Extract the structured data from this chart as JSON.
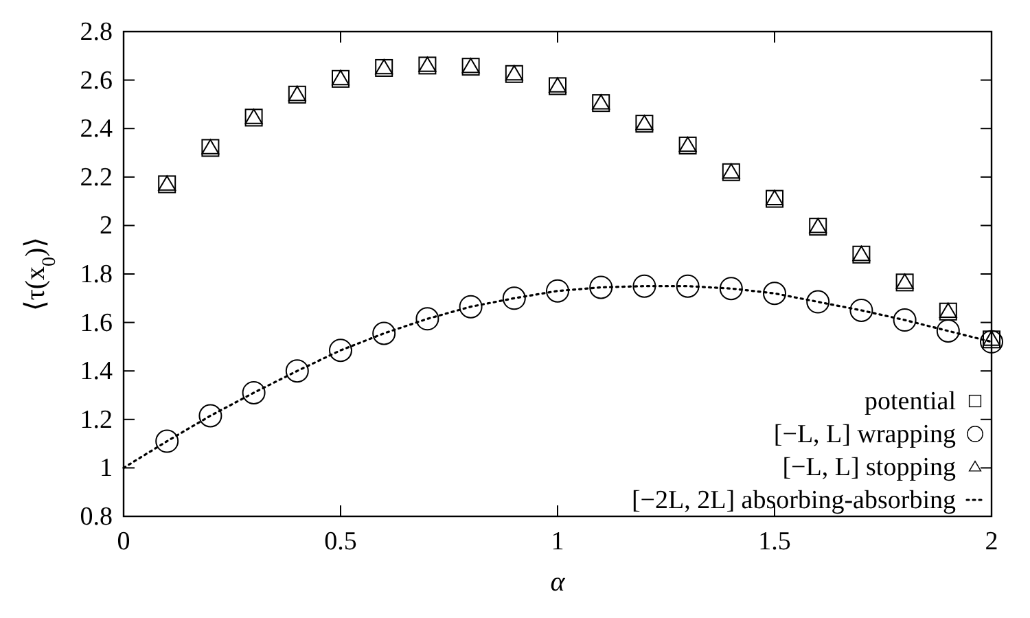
{
  "chart_data": {
    "type": "scatter",
    "xlabel": "α",
    "ylabel": "⟨τ(x$_{0}$)⟩",
    "xlim": [
      0,
      2
    ],
    "ylim": [
      0.8,
      2.8
    ],
    "xticks": [
      0,
      0.5,
      1,
      1.5,
      2
    ],
    "yticks": [
      0.8,
      1,
      1.2,
      1.4,
      1.6,
      1.8,
      2,
      2.2,
      2.4,
      2.6,
      2.8
    ],
    "grid": false,
    "legend": "bottom right",
    "x": [
      0.1,
      0.2,
      0.3,
      0.4,
      0.5,
      0.6,
      0.7,
      0.8,
      0.9,
      1.0,
      1.1,
      1.2,
      1.3,
      1.4,
      1.5,
      1.6,
      1.7,
      1.8,
      1.9,
      2.0
    ],
    "series": [
      {
        "name": "potential",
        "color": "#000000",
        "marker": "square",
        "values": [
          2.17,
          2.32,
          2.445,
          2.54,
          2.605,
          2.65,
          2.66,
          2.655,
          2.625,
          2.575,
          2.505,
          2.42,
          2.33,
          2.22,
          2.11,
          1.995,
          1.88,
          1.765,
          1.645,
          1.53
        ]
      },
      {
        "name": "[−L, L] wrapping",
        "color": "#000000",
        "marker": "circle",
        "values": [
          1.11,
          1.215,
          1.31,
          1.4,
          1.485,
          1.555,
          1.615,
          1.665,
          1.7,
          1.73,
          1.745,
          1.75,
          1.75,
          1.74,
          1.72,
          1.685,
          1.65,
          1.61,
          1.565,
          1.52
        ]
      },
      {
        "name": "[−L, L] stopping",
        "color": "#000000",
        "marker": "triangle",
        "values": [
          2.17,
          2.32,
          2.445,
          2.54,
          2.605,
          2.65,
          2.66,
          2.655,
          2.625,
          2.575,
          2.505,
          2.42,
          2.33,
          2.22,
          2.11,
          1.995,
          1.88,
          1.765,
          1.645,
          1.53
        ]
      },
      {
        "name": "[−2L, 2L] absorbing-absorbing",
        "type": "line",
        "color": "#000000",
        "marker": "none",
        "line_style": "dotted",
        "x": [
          0,
          0.1,
          0.2,
          0.3,
          0.4,
          0.5,
          0.6,
          0.7,
          0.8,
          0.9,
          1.0,
          1.1,
          1.2,
          1.3,
          1.4,
          1.5,
          1.6,
          1.7,
          1.8,
          1.9,
          2.0
        ],
        "values": [
          1.0,
          1.11,
          1.215,
          1.31,
          1.4,
          1.485,
          1.555,
          1.615,
          1.665,
          1.7,
          1.73,
          1.745,
          1.75,
          1.75,
          1.74,
          1.72,
          1.685,
          1.65,
          1.61,
          1.565,
          1.52
        ]
      }
    ]
  }
}
